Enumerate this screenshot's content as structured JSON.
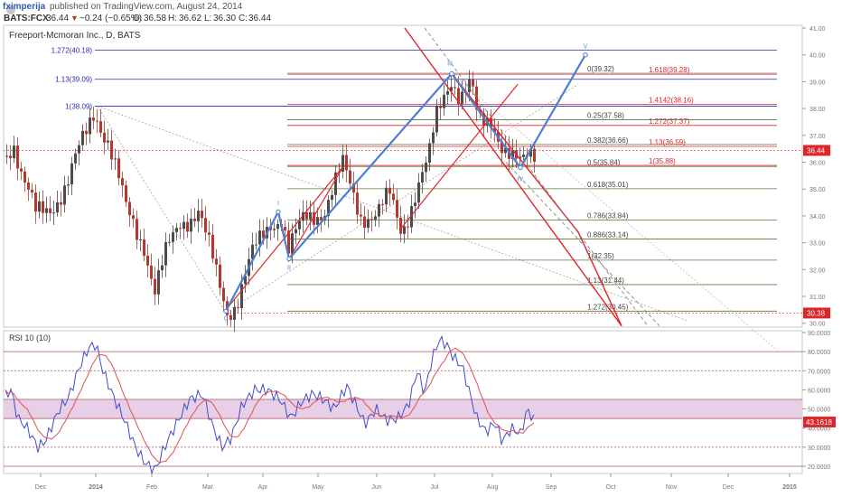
{
  "header": {
    "user": "fximperija",
    "published": "published on TradingView.com, August 24, 2014",
    "symbol": "BATS:FCX",
    "last": "36.44",
    "change": "−0.24 (−0.65%)",
    "o_label": "O:",
    "o_value": "36.58",
    "h_label": "H:",
    "h_value": "36.62",
    "l_label": "L:",
    "l_value": "36.30",
    "c_label": "C:",
    "c_value": "36.44"
  },
  "colors": {
    "up": "#4c4c4c",
    "down": "#b03a2e",
    "blue": "#4a7fd4",
    "red": "#e0252a",
    "fib_green": "#5a7a3a",
    "fib_blue": "#2a2ab8",
    "rsi": "#3f4bc8",
    "rsi_ma": "#e05050",
    "rsi_band": "#e8cfe8"
  },
  "chart_data": [
    {
      "type": "candlestick",
      "title": "Freeport-Mcmoran Inc., D, BATS",
      "x_ticks": [
        "Dec",
        "2014",
        "Feb",
        "Mar",
        "Apr",
        "May",
        "Jun",
        "Jul",
        "Aug",
        "Sep",
        "Oct",
        "Nov",
        "Dec",
        "2015"
      ],
      "y_ticks": [
        "41.00",
        "40.00",
        "39.00",
        "38.00",
        "37.00",
        "36.00",
        "35.00",
        "34.00",
        "33.00",
        "32.00",
        "31.00",
        "30.00"
      ],
      "ylim": [
        29.95,
        41.0
      ],
      "last_price": "36.44",
      "low_marker": "30.38",
      "wave_labels": [
        "I",
        "II",
        "III",
        "IV",
        "V",
        "0"
      ],
      "fib_retracements": [
        {
          "label": "0(39.32)",
          "value": 39.32
        },
        {
          "label": "0.25(37.58)",
          "value": 37.58
        },
        {
          "label": "0.382(36.66)",
          "value": 36.66
        },
        {
          "label": "0.5(35.84)",
          "value": 35.84
        },
        {
          "label": "0.618(35.01)",
          "value": 35.01
        },
        {
          "label": "0.786(33.84)",
          "value": 33.84
        },
        {
          "label": "0.886(33.14)",
          "value": 33.14
        },
        {
          "label": "1(32.35)",
          "value": 32.35
        },
        {
          "label": "1.13(31.44)",
          "value": 31.44
        },
        {
          "label": "1.272(30.45)",
          "value": 30.45
        }
      ],
      "fib_extensions_red": [
        {
          "label": "1.618(39.28)",
          "value": 39.28
        },
        {
          "label": "1.4142(38.16)",
          "value": 38.16
        },
        {
          "label": "1.272(37.37)",
          "value": 37.37
        },
        {
          "label": "1.13(36.59)",
          "value": 36.59
        },
        {
          "label": "1(35.88)",
          "value": 35.88
        }
      ],
      "fib_extensions_blue": [
        {
          "label": "1.272(40.18)",
          "value": 40.18
        },
        {
          "label": "1.13(39.09)",
          "value": 39.09
        },
        {
          "label": "1(38.09)",
          "value": 38.09
        }
      ]
    },
    {
      "type": "line",
      "title": "RSI 10 (10)",
      "y_ticks": [
        "90.0000",
        "80.0000",
        "70.0000",
        "60.0000",
        "50.0000",
        "40.0000",
        "30.0000",
        "20.0000"
      ],
      "ylim": [
        15,
        90
      ],
      "bands": [
        80,
        70,
        55,
        45,
        30,
        20
      ],
      "last_value": "43.1618"
    }
  ]
}
